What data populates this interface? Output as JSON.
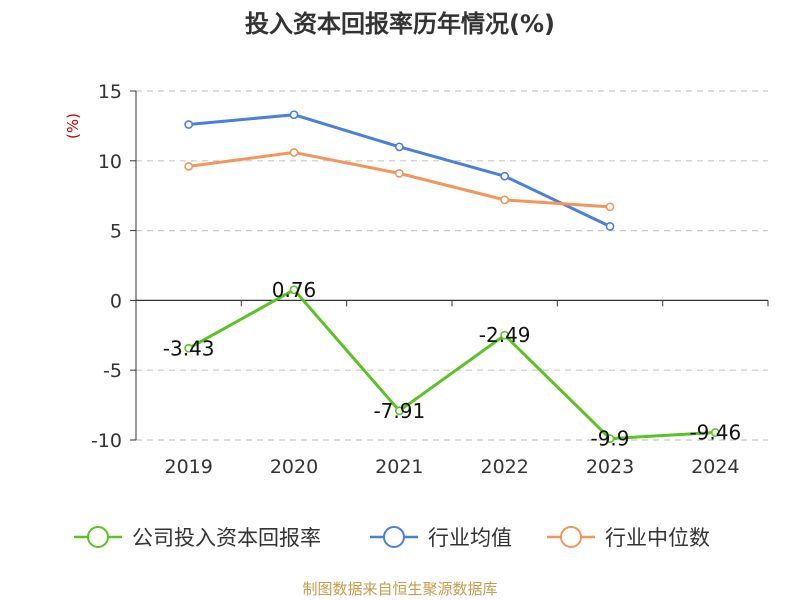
{
  "colors": {
    "company": "#5bc224",
    "industry_avg": "#4a7fdb",
    "industry_median": "#f5955c",
    "grid": "#c8c8c8",
    "axis": "#333333",
    "unit": "#cc0000",
    "source": "#c89b4a"
  },
  "chart_data": {
    "type": "line",
    "title": "投入资本回报率历年情况(%)",
    "ylabel": "(%)",
    "xlabel": "",
    "categories": [
      "2019",
      "2020",
      "2021",
      "2022",
      "2023",
      "2024"
    ],
    "ylim": [
      -10,
      15
    ],
    "yticks": [
      "15",
      "10",
      "5",
      "0",
      "-5",
      "-10"
    ],
    "grid": "horizontal dashed",
    "legend_position": "bottom",
    "series": [
      {
        "name": "公司投入资本回报率",
        "key": "company",
        "values": [
          -3.43,
          0.76,
          -7.91,
          -2.49,
          -9.9,
          -9.46
        ],
        "labels": [
          "-3.43",
          "0.76",
          "-7.91",
          "-2.49",
          "-9.9",
          "-9.46"
        ]
      },
      {
        "name": "行业均值",
        "key": "industry_avg",
        "values": [
          12.6,
          13.3,
          11.0,
          8.9,
          5.3,
          null
        ]
      },
      {
        "name": "行业中位数",
        "key": "industry_median",
        "values": [
          9.6,
          10.6,
          9.1,
          7.2,
          6.7,
          null
        ]
      }
    ],
    "source": "制图数据来自恒生聚源数据库"
  }
}
